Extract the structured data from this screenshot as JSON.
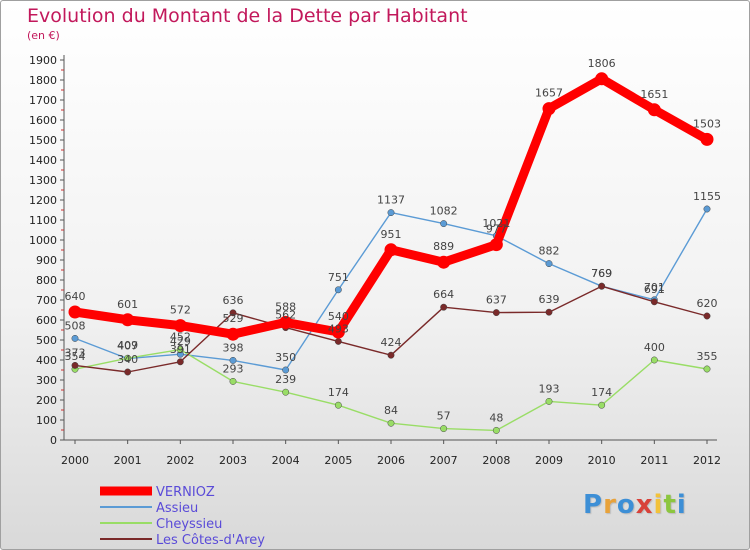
{
  "chart_data": {
    "type": "line",
    "title": "Evolution du Montant de la Dette par Habitant",
    "subtitle": "(en €)",
    "x": [
      "2000",
      "2001",
      "2002",
      "2003",
      "2004",
      "2005",
      "2006",
      "2007",
      "2008",
      "2009",
      "2010",
      "2011",
      "2012"
    ],
    "ylim": [
      0,
      1900
    ],
    "yticks": [
      0,
      100,
      200,
      300,
      400,
      500,
      600,
      700,
      800,
      900,
      1000,
      1100,
      1200,
      1300,
      1400,
      1500,
      1600,
      1700,
      1800,
      1900
    ],
    "grid": false,
    "legend": "bottom-left",
    "series": [
      {
        "name": "VERNIOZ",
        "color": "#ff0000",
        "values": [
          640,
          601,
          572,
          529,
          588,
          540,
          951,
          889,
          977,
          1657,
          1806,
          1651,
          1503
        ]
      },
      {
        "name": "Assieu",
        "color": "#5b9bd5",
        "values": [
          508,
          407,
          429,
          398,
          350,
          751,
          1137,
          1082,
          1021,
          882,
          769,
          701,
          1155
        ]
      },
      {
        "name": "Cheyssieu",
        "color": "#99dd66",
        "values": [
          354,
          409,
          452,
          293,
          239,
          174,
          84,
          57,
          48,
          193,
          174,
          400,
          355
        ]
      },
      {
        "name": "Les Côtes-d'Arey",
        "color": "#7a2a2a",
        "values": [
          373,
          340,
          391,
          636,
          562,
          493,
          424,
          664,
          637,
          639,
          769,
          691,
          620
        ]
      }
    ]
  },
  "logo": {
    "letters": [
      "P",
      "r",
      "o",
      "x",
      "i",
      "t",
      "i"
    ],
    "colors": [
      "#3d8fd6",
      "#e8a23a",
      "#3d8fd6",
      "#d8423a",
      "#f2c23a",
      "#8cc63f",
      "#3d8fd6"
    ]
  }
}
